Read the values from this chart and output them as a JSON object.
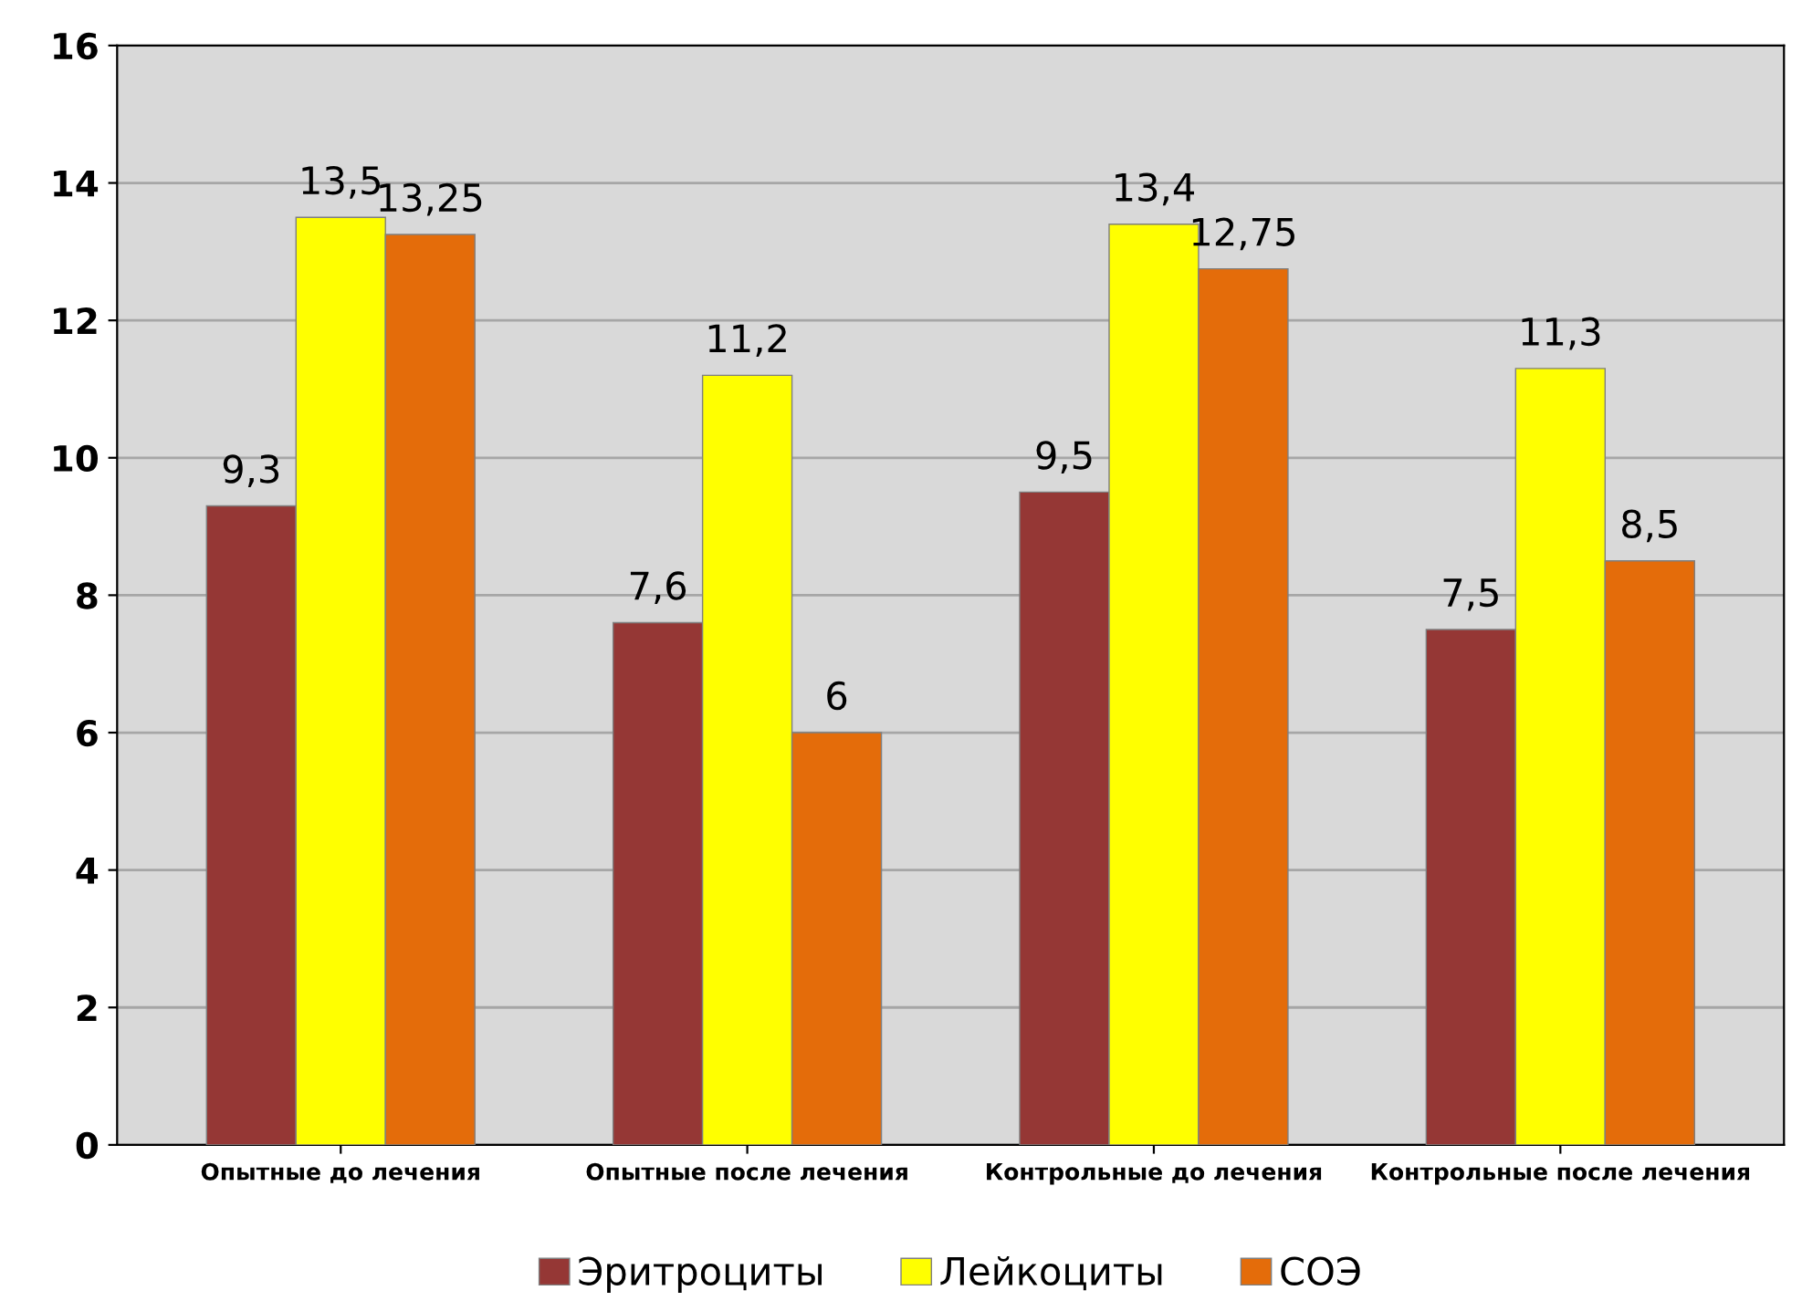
{
  "chart_data": {
    "type": "bar",
    "categories": [
      "Опытные до лечения",
      "Опытные после лечения",
      "Контрольные до лечения",
      "Контрольные после лечения"
    ],
    "series": [
      {
        "name": "Эритроциты",
        "color": "#953735",
        "values": [
          9.3,
          7.6,
          9.5,
          7.5
        ],
        "value_labels": [
          "9,3",
          "7,6",
          "9,5",
          "7,5"
        ]
      },
      {
        "name": "Лейкоциты",
        "color": "#ffff00",
        "values": [
          13.5,
          11.2,
          13.4,
          11.3
        ],
        "value_labels": [
          "13,5",
          "11,2",
          "13,4",
          "11,3"
        ]
      },
      {
        "name": "СОЭ",
        "color": "#e46c0a",
        "values": [
          13.25,
          6,
          12.75,
          8.5
        ],
        "value_labels": [
          "13,25",
          "6",
          "12,75",
          "8,5"
        ]
      }
    ],
    "ylim": [
      0,
      16
    ],
    "yticks": [
      0,
      2,
      4,
      6,
      8,
      10,
      12,
      14,
      16
    ],
    "grid": "y",
    "legend": "bottom"
  }
}
